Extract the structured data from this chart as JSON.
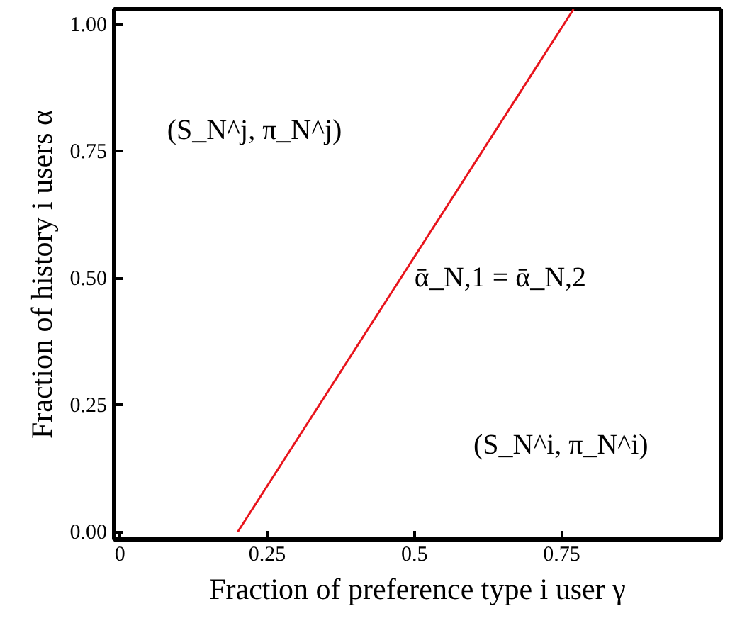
{
  "chart_data": {
    "type": "line",
    "xlabel": "Fraction of preference type i user γ",
    "ylabel": "Fraction of history i users α",
    "x": [
      0.2,
      0.77
    ],
    "series": [
      {
        "color": "#e8141c",
        "values": [
          0,
          1.03
        ]
      }
    ],
    "xlim": [
      -0.01,
      1.02
    ],
    "ylim": [
      -0.015,
      1.03
    ],
    "xticks": [
      0,
      0.25,
      0.5,
      0.75
    ],
    "yticks": [
      {
        "value": 0,
        "label": "0.00"
      },
      {
        "value": 0.25,
        "label": "0.25"
      },
      {
        "value": 0.5,
        "label": "0.50"
      },
      {
        "value": 0.75,
        "label": "0.75"
      },
      {
        "value": 1,
        "label": "1.00"
      }
    ],
    "grid": false,
    "marker": "none",
    "line_style": "solid",
    "annotations": [
      "(S_N^j, π_N^j)",
      "ᾱ_N,1 = ᾱ_N,2",
      "(S_N^i, π_N^i)"
    ]
  }
}
